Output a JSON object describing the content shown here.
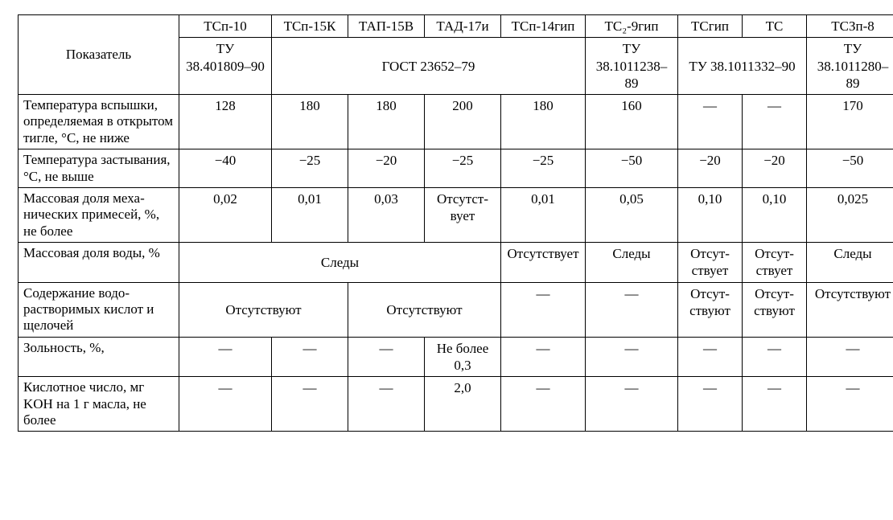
{
  "header": {
    "label": "Показатель",
    "products": [
      "ТСп-10",
      "ТСп-15К",
      "ТАП-15В",
      "ТАД-17и",
      "ТСп-14гип",
      "ТС₂-9гип",
      "ТСгип",
      "ТС",
      "ТСЗп-8"
    ],
    "specs": {
      "s1": "ТУ 38.401809–90",
      "s2": "ГОСТ 23652–79",
      "s3": "ТУ 38.1011238–89",
      "s4": "ТУ 38.1011332–90",
      "s5": "ТУ 38.1011280–89"
    }
  },
  "rows": {
    "r1": {
      "label": "Температура вспышки, определяемая в открытом тигле, °C, не ниже",
      "v": [
        "128",
        "180",
        "180",
        "200",
        "180",
        "160",
        "—",
        "—",
        "170"
      ]
    },
    "r2": {
      "label": "Температура засты­вания, °C, не выше",
      "v": [
        "−40",
        "−25",
        "−20",
        "−25",
        "−25",
        "−50",
        "−20",
        "−20",
        "−50"
      ]
    },
    "r3": {
      "label": "Массовая доля меха­нических приме­сей, %, не более",
      "v": [
        "0,02",
        "0,01",
        "0,03",
        "Отсутст­вует",
        "0,01",
        "0,05",
        "0,10",
        "0,10",
        "0,025"
      ]
    },
    "r4": {
      "label": "Массовая доля воды, %",
      "m1": "Следы",
      "m2": "Отсутств­ует",
      "m3": "Следы",
      "m4": "Отсут­ствует",
      "m5": "Отсут­ствует",
      "m6": "Следы"
    },
    "r5": {
      "label": "Содержание водо­растворимых кис­лот и щелочей",
      "m1": "Отсутствуют",
      "m2": "Отсутствуют",
      "m3": "—",
      "m4": "—",
      "m5": "Отсут­ствуют",
      "m6": "Отсут­ствуют",
      "m7": "Отсутству­ют"
    },
    "r6": {
      "label": "Зольность, %,",
      "v": [
        "—",
        "—",
        "—",
        "Не бо­лее 0,3",
        "—",
        "—",
        "—",
        "—",
        "—"
      ]
    },
    "r7": {
      "label": "Кислотное число, мг KOH на 1 г масла, не более",
      "v": [
        "—",
        "—",
        "—",
        "2,0",
        "—",
        "—",
        "—",
        "—",
        "—"
      ]
    }
  },
  "style": {
    "font_family": "Times New Roman",
    "font_size_pt": 13,
    "border_color": "#000000",
    "background_color": "#ffffff",
    "text_color": "#000000"
  }
}
